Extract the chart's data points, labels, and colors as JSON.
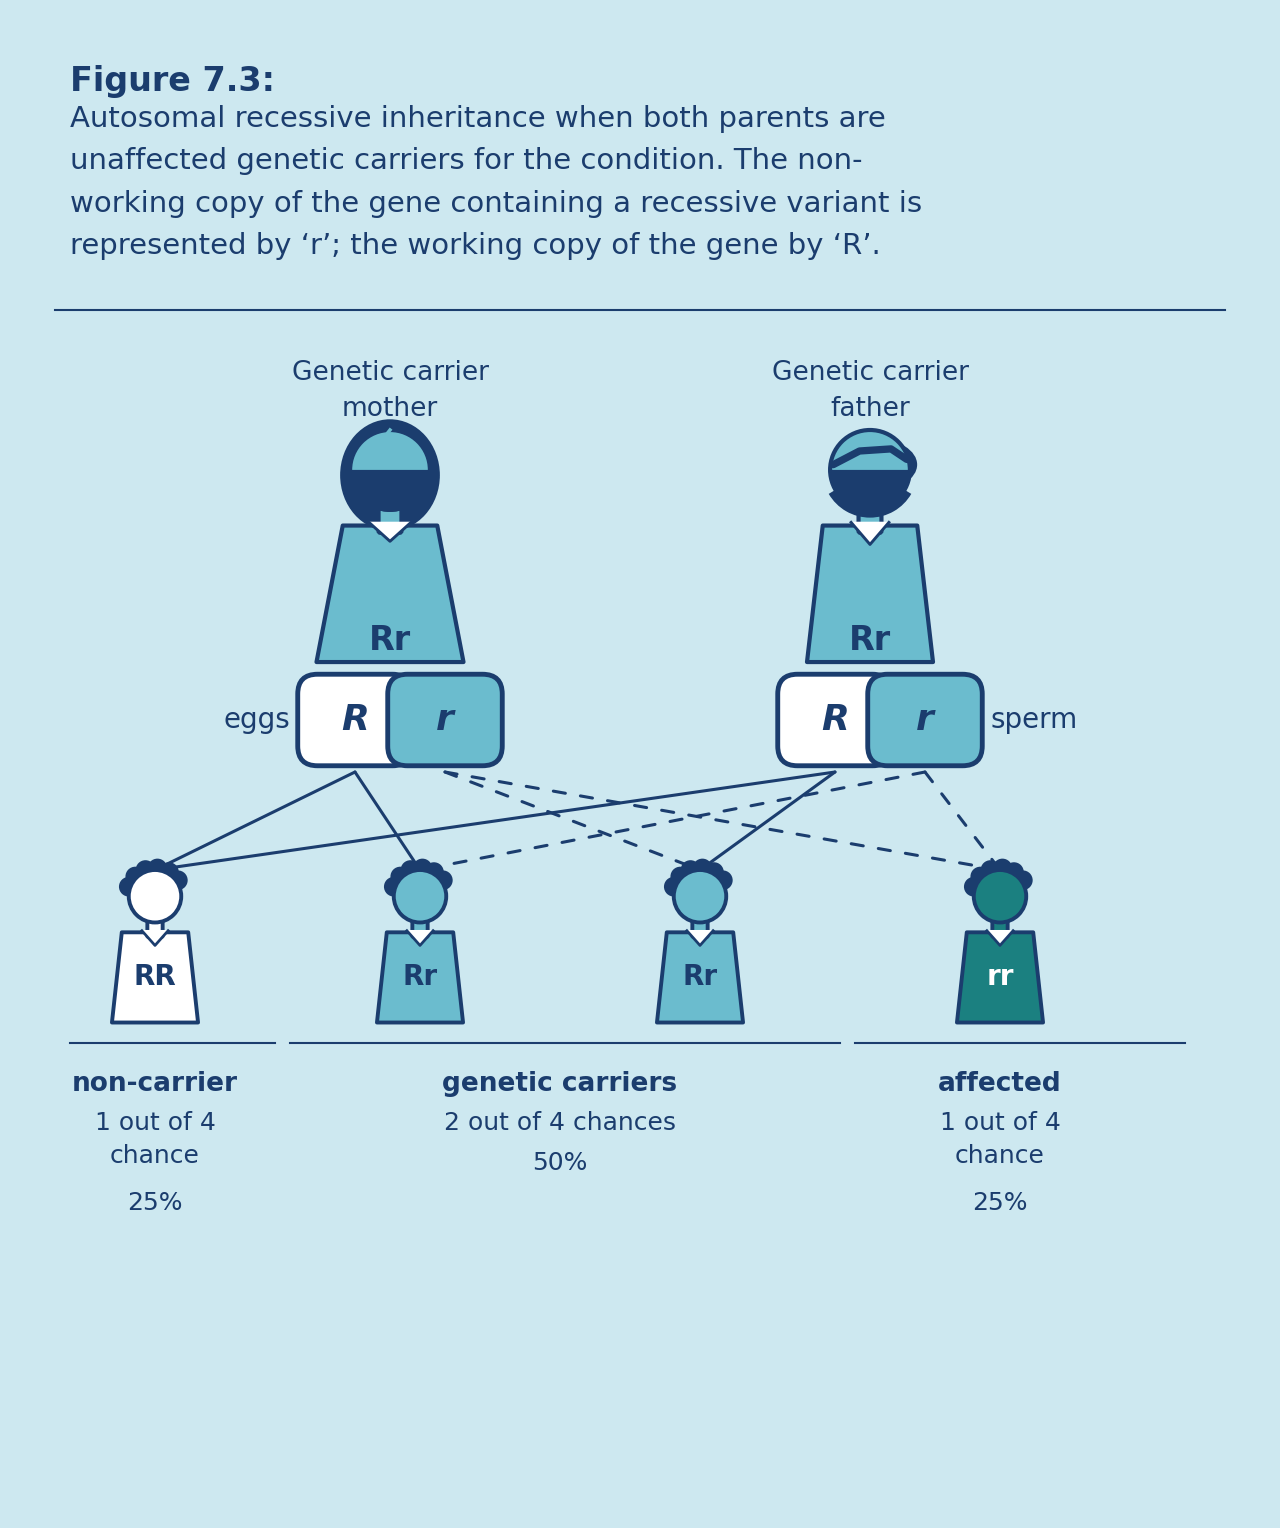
{
  "bg_color": "#cde8f0",
  "dark_blue": "#1b3d6e",
  "medium_teal": "#6bbcce",
  "dark_teal": "#1b8080",
  "white": "#ffffff",
  "title_bold": "Figure 7.3:",
  "title_body": "Autosomal recessive inheritance when both parents are\nunaffected genetic carriers for the condition. The non-\nworking copy of the gene containing a recessive variant is\nrepresented by ‘r’; the working copy of the gene by ‘R’.",
  "mother_label": "Genetic carrier\nmother",
  "father_label": "Genetic carrier\nfather",
  "eggs_label": "eggs",
  "sperm_label": "sperm",
  "mother_genotype": "Rr",
  "father_genotype": "Rr",
  "egg_R_label": "R",
  "egg_r_label": "r",
  "sperm_R_label": "R",
  "sperm_r_label": "r",
  "child_genotypes": [
    "RR",
    "Rr",
    "Rr",
    "rr"
  ],
  "child_body_colors": [
    "#ffffff",
    "#6bbcce",
    "#6bbcce",
    "#1b8080"
  ],
  "child_text_colors": [
    "#1b3d6e",
    "#1b3d6e",
    "#1b3d6e",
    "#ffffff"
  ],
  "label1": "non-carrier",
  "label2": "genetic carriers",
  "label3": "affected",
  "chance1": "1 out of 4\nchance",
  "chance2": "2 out of 4 chances",
  "chance3": "1 out of 4\nchance",
  "pct1": "25%",
  "pct2": "50%",
  "pct3": "25%"
}
